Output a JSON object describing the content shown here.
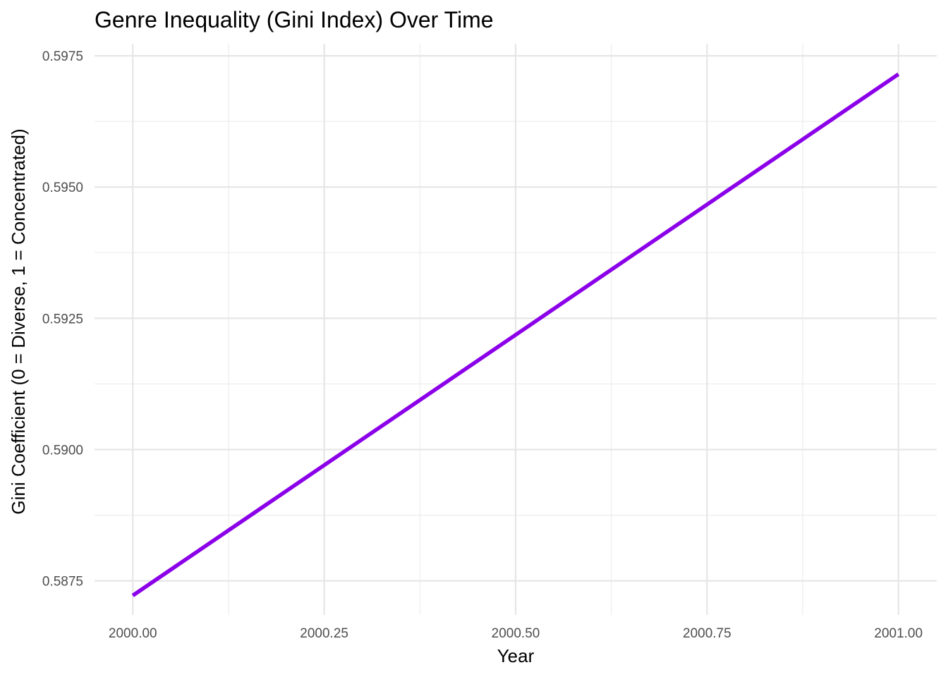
{
  "chart_data": {
    "type": "line",
    "title": "Genre Inequality (Gini Index) Over Time",
    "xlabel": "Year",
    "ylabel": "Gini Coefficient (0 = Diverse, 1 = Concentrated)",
    "x_ticks": [
      "2000.00",
      "2000.25",
      "2000.50",
      "2000.75",
      "2001.00"
    ],
    "x_tick_values": [
      2000.0,
      2000.25,
      2000.5,
      2000.75,
      2001.0
    ],
    "y_ticks": [
      "0.5875",
      "0.5900",
      "0.5925",
      "0.5950",
      "0.5975"
    ],
    "y_tick_values": [
      0.5875,
      0.59,
      0.5925,
      0.595,
      0.5975
    ],
    "xlim": [
      1999.95,
      2001.05
    ],
    "ylim": [
      0.58685,
      0.59773
    ],
    "grid": true,
    "series": [
      {
        "color": "#8B00E8",
        "x": [
          2000,
          2001
        ],
        "y": [
          0.58722,
          0.59715
        ]
      }
    ]
  }
}
